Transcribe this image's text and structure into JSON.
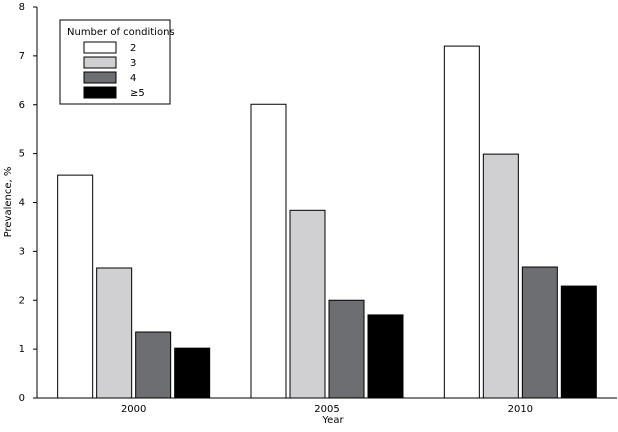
{
  "chart_data": {
    "type": "bar",
    "x_label": "Year",
    "y_label": "Prevalence, %",
    "categories": [
      "2000",
      "2005",
      "2010"
    ],
    "legend_title": "Number of conditions",
    "legend_position": "upper left",
    "series": [
      {
        "name": "2",
        "color": "#ffffff",
        "values": [
          4.56,
          6.01,
          7.2
        ]
      },
      {
        "name": "3",
        "color": "#d0d0d2",
        "values": [
          2.66,
          3.84,
          4.99
        ]
      },
      {
        "name": "4",
        "color": "#6d6e72",
        "values": [
          1.35,
          2.0,
          2.68
        ]
      },
      {
        "name": "≥5",
        "color": "#000000",
        "values": [
          1.02,
          1.7,
          2.29
        ]
      }
    ],
    "ylim": [
      0,
      8
    ],
    "yticks": [
      0,
      1,
      2,
      3,
      4,
      5,
      6,
      7,
      8
    ],
    "grid": false
  }
}
